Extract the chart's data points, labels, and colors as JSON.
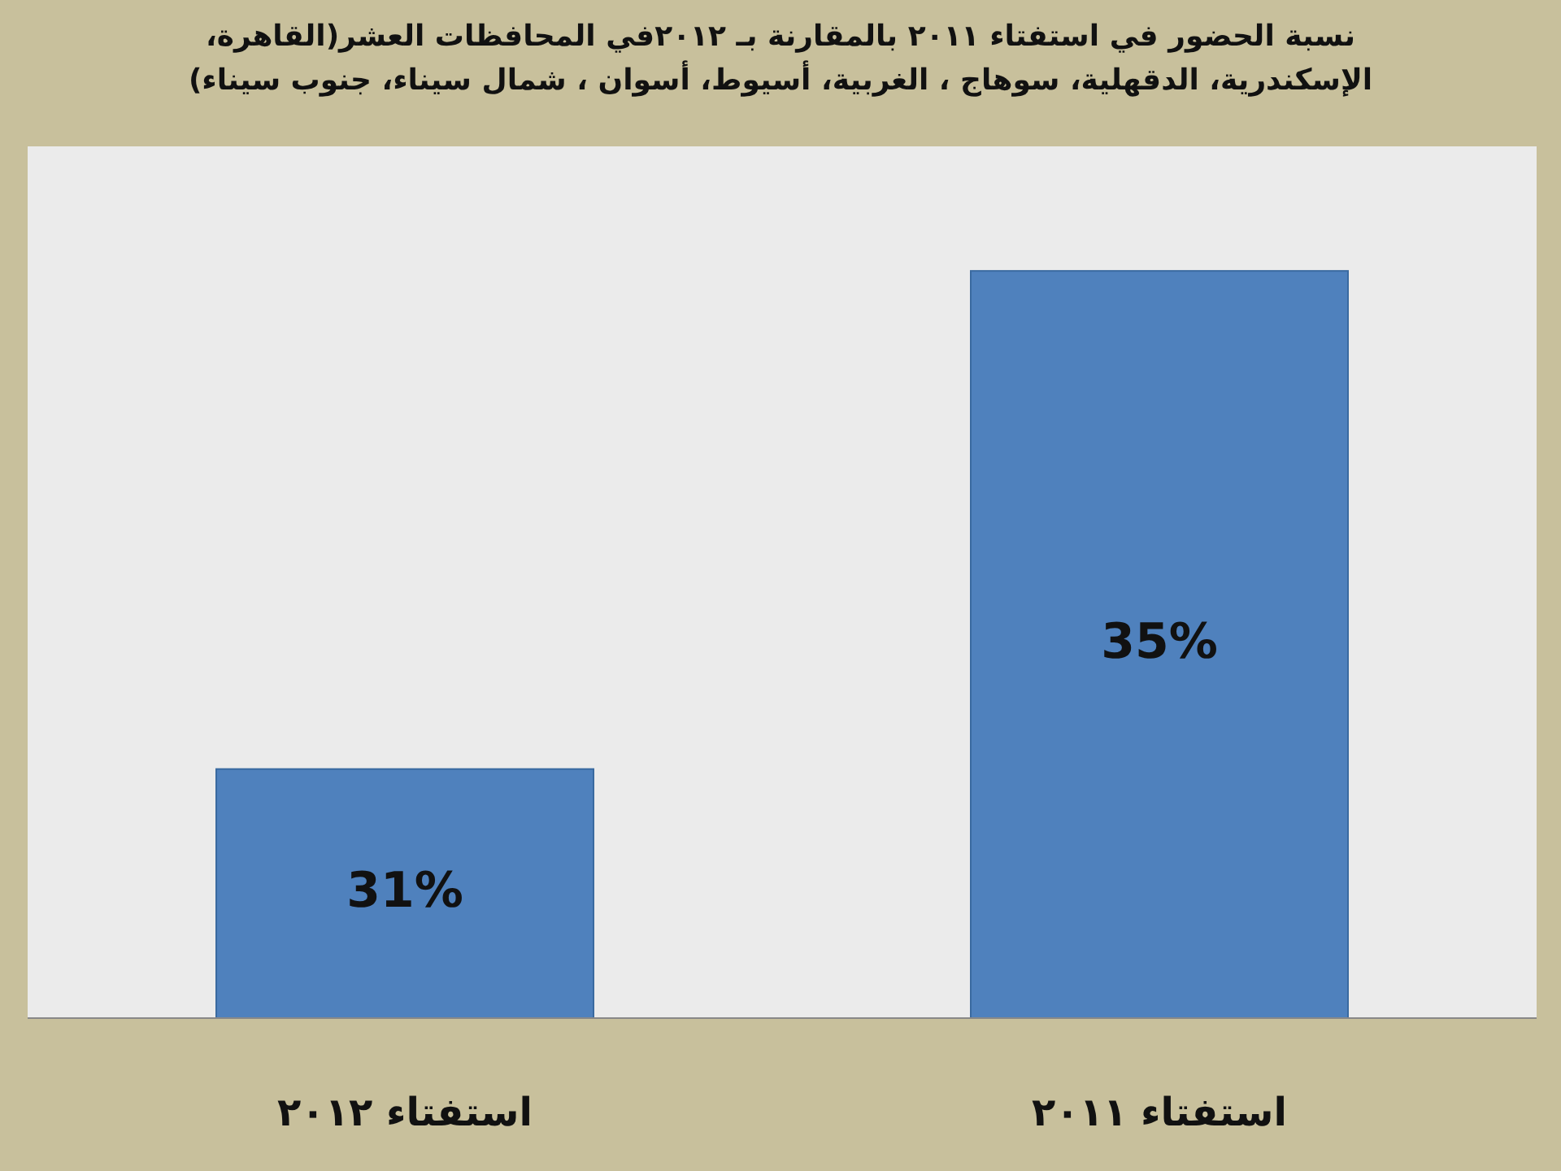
{
  "chart_data": {
    "type": "bar",
    "title": "نسبة الحضور في استفتاء ٢٠١١ بالمقارنة بـ ٢٠١٢في المحافظات العشر(القاهرة،\nالإسكندرية، الدقهلية، سوهاج ، الغربية، أسيوط، أسوان ، شمال سيناء، جنوب سيناء)",
    "categories": [
      "استفتاء ٢٠١٢",
      "استفتاء ٢٠١١"
    ],
    "values": [
      31,
      35
    ],
    "value_labels": [
      "31%",
      "35%"
    ],
    "color": "#4f81bd",
    "ylim": [
      29,
      36
    ],
    "tick_labels": "x"
  }
}
